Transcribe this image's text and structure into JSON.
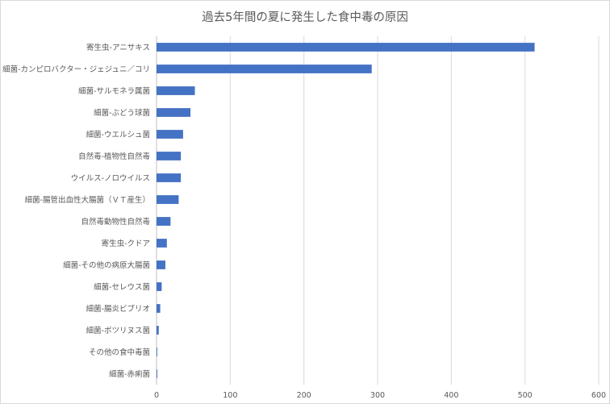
{
  "chart_data": {
    "type": "bar",
    "orientation": "horizontal",
    "title": "過去5年間の夏に発生した食中毒の原因",
    "xlabel": "",
    "ylabel": "",
    "xlim": [
      0,
      600
    ],
    "x_ticks": [
      0,
      100,
      200,
      300,
      400,
      500,
      600
    ],
    "grid": true,
    "legend": "none",
    "bar_color": "#4472c4",
    "categories": [
      "寄生虫-アニサキス",
      "細菌-カンピロバクター・ジェジュニ／コリ",
      "細菌-サルモネラ属菌",
      "細菌-ぶどう球菌",
      "細菌-ウエルシュ菌",
      "自然毒-植物性自然毒",
      "ウイルス-ノロウイルス",
      "細菌-腸管出血性大腸菌（ＶＴ産生）",
      "自然毒動物性自然毒",
      "寄生虫-クドア",
      "細菌-その他の病原大腸菌",
      "細菌-セレウス菌",
      "細菌-腸炎ビブリオ",
      "細菌-ボツリヌス菌",
      "その他の食中毒菌",
      "細菌-赤痢菌"
    ],
    "values": [
      513,
      292,
      52,
      46,
      36,
      33,
      33,
      30,
      19,
      14,
      12,
      7,
      5,
      3,
      1,
      1
    ]
  }
}
